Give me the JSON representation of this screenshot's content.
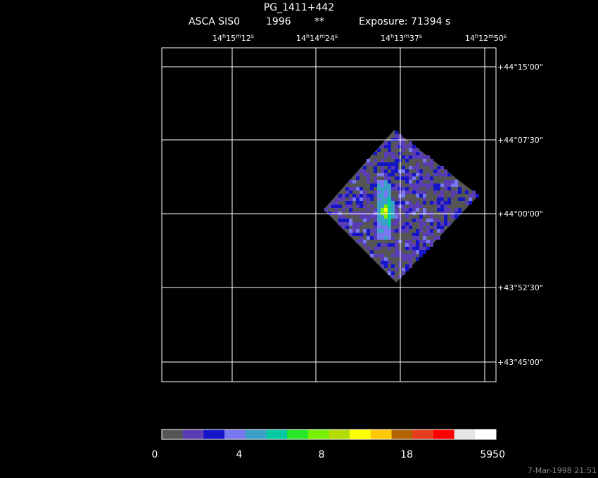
{
  "header": {
    "title": "PG_1411+442",
    "subtitle": [
      "ASCA SIS0",
      "1996",
      "**",
      "Exposure: 71394 s"
    ]
  },
  "ra_labels": [
    [
      "14",
      "h",
      "15",
      "m",
      "12",
      "s"
    ],
    [
      "14",
      "h",
      "14",
      "m",
      "24",
      "s"
    ],
    [
      "14",
      "h",
      "13",
      "m",
      "37",
      "s"
    ],
    [
      "14",
      "h",
      "12",
      "m",
      "50",
      "s"
    ]
  ],
  "dec_labels": [
    "+44°15'00\"",
    "+44°07'30\"",
    "+44°00'00\"",
    "+43°52'30\"",
    "+43°45'00\""
  ],
  "colorbar": {
    "colors": [
      "#555555",
      "#5a3cb4",
      "#1414c8",
      "#7878f0",
      "#3ca0c8",
      "#00c8a0",
      "#28e628",
      "#78f000",
      "#b4dc00",
      "#ffff00",
      "#ffc800",
      "#b46400",
      "#e63c1e",
      "#ff0000",
      "#e6e6e6",
      "#ffffff"
    ],
    "labels": [
      "0",
      "4",
      "8",
      "18",
      "5950"
    ]
  },
  "timestamp": "7-Mar-1998 21:51"
}
